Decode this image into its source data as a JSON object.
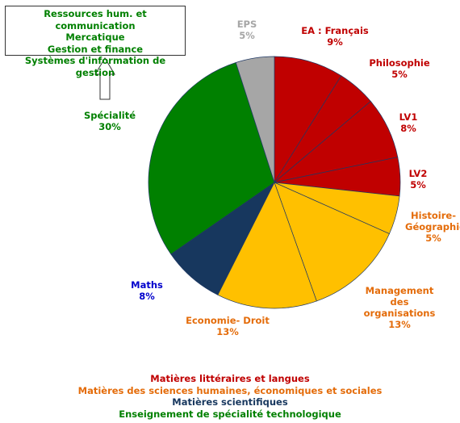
{
  "chart_data": {
    "type": "pie",
    "categories": [
      "EA : Français",
      "Philosophie",
      "LV1",
      "LV2",
      "Histoire-Géographie",
      "Management des organisations",
      "Economie- Droit",
      "Maths",
      "Spécialité",
      "EPS"
    ],
    "values": [
      9,
      5,
      8,
      5,
      5,
      13,
      13,
      8,
      30,
      5
    ],
    "value_labels": [
      "9%",
      "5%",
      "8%",
      "5%",
      "5%",
      "13%",
      "13%",
      "8%",
      "30%",
      "5%"
    ],
    "colors": [
      "#c00000",
      "#c00000",
      "#c00000",
      "#c00000",
      "#ffc000",
      "#ffc000",
      "#ffc000",
      "#17375e",
      "#008000",
      "#a6a6a6"
    ],
    "label_colors": [
      "#c00000",
      "#c00000",
      "#c00000",
      "#c00000",
      "#e46c0a",
      "#e46c0a",
      "#e46c0a",
      "#0000cc",
      "#008000",
      "#a6a6a6"
    ],
    "legend": [
      {
        "label": "Matières littéraires et langues",
        "color": "#c00000"
      },
      {
        "label": "Matières des sciences humaines, économiques et sociales",
        "color": "#e46c0a"
      },
      {
        "label": "Matières scientifiques",
        "color": "#17375e"
      },
      {
        "label": "Enseignement de spécialité technologique",
        "color": "#008000"
      }
    ],
    "specialties": [
      "Ressources hum. et communication",
      "Mercatique",
      "Gestion et finance",
      "Systèmes d'information de gestion"
    ]
  }
}
